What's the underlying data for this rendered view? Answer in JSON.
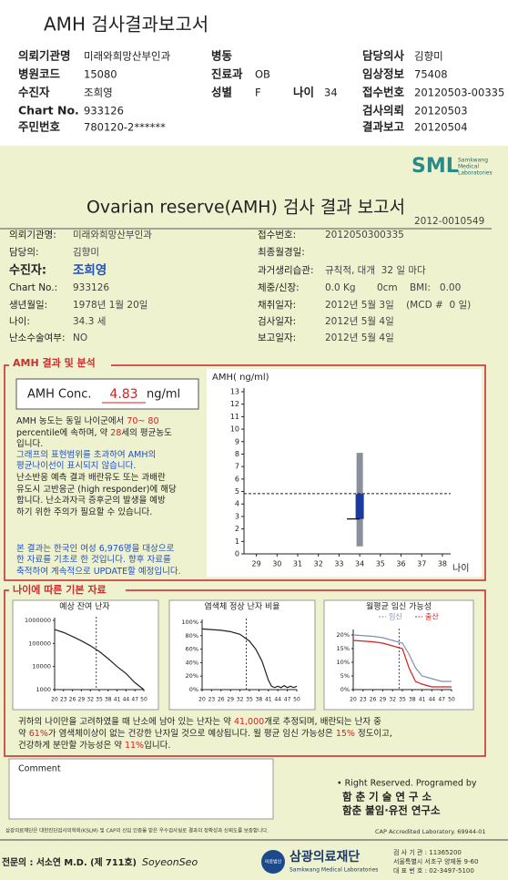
{
  "header": {
    "title": "AMH 검사결과보고서",
    "fields": [
      {
        "label": "의뢰기관명",
        "value": "미래와희망산부인과"
      },
      {
        "label": "병동"
      },
      {
        "label": "담당의사",
        "value": "김향미"
      },
      {
        "label": "병원코드",
        "value": "15080"
      },
      {
        "label": "진료과",
        "value": "OB"
      },
      {
        "label": "임상정보",
        "value": "75408"
      },
      {
        "label": "수진자",
        "value": "조희영"
      },
      {
        "label": "성별",
        "value": "F"
      },
      {
        "label": "나이",
        "value": "34"
      },
      {
        "label": "접수번호",
        "value": "20120503-00335"
      },
      {
        "label": "Chart No.",
        "value": "933126"
      },
      {
        "label": "검사의뢰",
        "value": "20120503"
      },
      {
        "label": "주민번호",
        "value": "780120-2******"
      },
      {
        "label": "결과보고",
        "value": "20120504"
      }
    ]
  },
  "report": {
    "logo": "SML",
    "logo_sub": [
      "Samkwang",
      "Medical",
      "Laboratories"
    ],
    "title": "Ovarian reserve(AMH) 검사 결과 보고서",
    "number": "2012-0010549",
    "left": [
      {
        "label": "의뢰기관명:",
        "value": "미래와희망산부인과"
      },
      {
        "label": "담당의:",
        "value": "김향미"
      },
      {
        "label": "수진자:",
        "value": "조희영"
      },
      {
        "label": "Chart No.:",
        "value": "933126"
      },
      {
        "label": "생년월일:",
        "value": "1978년 1월 20일"
      },
      {
        "label": "나이:",
        "value": "34.3 세"
      },
      {
        "label": "난소수술여부:",
        "value": "NO"
      }
    ],
    "right": [
      {
        "label": "접수번호:",
        "value": "2012050300335"
      },
      {
        "label": "최종월경일:"
      },
      {
        "label": "과거생리습관:",
        "value": "규칙적, 대개  32 일 마다"
      },
      {
        "label": "체중/신장:",
        "value": "0.0 Kg       0cm    BMI:   0.00"
      },
      {
        "label": "채취일자:",
        "value": "2012년 5월 3일    (MCD #  0 일)"
      },
      {
        "label": "검사일자:",
        "value": "2012년 5월 4일"
      },
      {
        "label": "보고일자:",
        "value": "2012년 5월 4일"
      }
    ]
  },
  "amh": {
    "title": "AMH 결과 및 분석",
    "conc_label": "AMH Conc.",
    "conc_value": 4.83,
    "conc_unit": "ng/ml",
    "highlight": "#d42020",
    "paragraphs": [
      {
        "color": "#222222",
        "lines": [
          [
            "AMH 농도는 동일 나이군에서 ",
            "70~ 80"
          ],
          [
            "percentile에 속하며, 약 ",
            "28",
            "세의 평균농도"
          ],
          [
            "입니다."
          ]
        ]
      },
      {
        "color": "#1f4fc0",
        "lines": [
          [
            "그래프의 표현범위를 초과하여 AMH의"
          ],
          [
            "평균나이선이 표시되지 않습니다."
          ]
        ]
      },
      {
        "color": "#222222",
        "lines": [
          [
            "난소반응 예측 결과 배란유도 또는 과배란"
          ],
          [
            "유도시 고반응군 (high responder)에 해당"
          ],
          [
            "합니다. 난소과자극 증후군의 발생을 예방"
          ],
          [
            "하기 위한 주의가 필요할 수 있습니다."
          ]
        ]
      },
      {
        "color": "#1f4fc0",
        "lines": [
          [
            "본 결과는 한국인 여성 6,976명을 대상으로"
          ],
          [
            "한 자료를 기초로 한 것입니다. 향후 자료를"
          ],
          [
            "축적하여 계속적으로 UPDATE할 예정입니다."
          ]
        ]
      }
    ],
    "chart": {
      "y_label": "AMH( ng/ml)",
      "x_label": "나이",
      "ylim": [
        0,
        13
      ],
      "yticks": [
        0,
        1,
        2,
        3,
        4,
        5,
        6,
        7,
        8,
        9,
        10,
        11,
        12,
        13
      ],
      "xlim": [
        28.4,
        38.4
      ],
      "xticks": [
        29,
        30,
        31,
        32,
        33,
        34,
        35,
        36,
        37,
        38
      ],
      "age": 34,
      "range": [
        0.6,
        8.1
      ],
      "box": [
        2.8,
        4.8
      ],
      "range_color": "#8a8f9c",
      "box_color": "#1a3aa0"
    }
  },
  "age": {
    "title": "나이에 따른 기본 자료",
    "marker_x": 34,
    "charts": [
      {
        "title": "예상 잔여 난자",
        "log": true,
        "xlim": [
          20,
          50
        ],
        "xticks": [
          20,
          23,
          26,
          29,
          32,
          35,
          38,
          41,
          44,
          47,
          50
        ],
        "ylim": [
          1000,
          1000000
        ],
        "yticks": [
          1000,
          10000,
          100000,
          1000000
        ],
        "series": [
          {
            "color": "#222222",
            "x": [
              20,
              23,
              26,
              29,
              32,
              35,
              38,
              41,
              44,
              47,
              50
            ],
            "values": [
              400000,
              300000,
              200000,
              130000,
              80000,
              45000,
              22000,
              10000,
              5000,
              2000,
              1000
            ]
          }
        ]
      },
      {
        "title": "염색체 정상 난자 비율",
        "log": false,
        "xlim": [
          20,
          50
        ],
        "xticks": [
          20,
          23,
          26,
          29,
          32,
          35,
          38,
          41,
          44,
          47,
          50
        ],
        "ylim": [
          0,
          100
        ],
        "yticks": [
          {
            "value": 0,
            "label": "0%"
          },
          {
            "value": 20,
            "label": "20%"
          },
          {
            "value": 40,
            "label": "40%"
          },
          {
            "value": 60,
            "label": "60%"
          },
          {
            "value": 80,
            "label": "80%"
          },
          {
            "value": 100,
            "label": "100%"
          }
        ],
        "series": [
          {
            "color": "#222222",
            "x": [
              20,
              23,
              26,
              29,
              32,
              35,
              37,
              39,
              40,
              41,
              42,
              43,
              44,
              45,
              46,
              47,
              48,
              49,
              50
            ],
            "values": [
              90,
              89,
              88,
              86,
              82,
              72,
              60,
              42,
              28,
              14,
              5,
              3,
              5,
              3,
              6,
              3,
              5,
              3,
              5
            ]
          }
        ]
      },
      {
        "title": "월평균 임신 가능성",
        "log": false,
        "xlim": [
          20,
          50
        ],
        "xticks": [
          20,
          23,
          26,
          29,
          32,
          35,
          38,
          41,
          44,
          47,
          50
        ],
        "ylim": [
          0,
          21
        ],
        "yticks": [
          {
            "value": 0,
            "label": "0%"
          },
          {
            "value": 5,
            "label": "5%"
          },
          {
            "value": 10,
            "label": "10%"
          },
          {
            "value": 15,
            "label": "15%"
          },
          {
            "value": 20,
            "label": "20%"
          }
        ],
        "series": [
          {
            "name": "임신",
            "color": "#8090b0",
            "x": [
              20,
              26,
              29,
              32,
              35,
              37,
              39,
              41,
              44,
              47,
              50
            ],
            "values": [
              20,
              19.5,
              19,
              18,
              17,
              13,
              8,
              5,
              4,
              3,
              3
            ]
          },
          {
            "name": "출산",
            "color": "#d42020",
            "x": [
              20,
              26,
              29,
              32,
              35,
              37,
              39,
              41,
              44,
              47,
              50
            ],
            "values": [
              18,
              17.5,
              17,
              16,
              15,
              8,
              3,
              2,
              1,
              1,
              1
            ]
          }
        ]
      }
    ],
    "conclusion": [
      [
        "귀하의 나이만을 고려하였을 때 난소에 남아 있는 난자는 약 ",
        "41,000",
        "개로 추정되며, 배란되는 난자 중"
      ],
      [
        "약 ",
        "61%",
        "가 염색체이상이 없는 건강한 난자일 것으로 예상됩니다. 월 평균 임신 가능성은 ",
        "15%",
        " 정도이고,"
      ],
      [
        "건강하게 분만할 가능성은 약 ",
        "11%",
        "입니다."
      ]
    ]
  },
  "comment": {
    "label": "Comment"
  },
  "credits": [
    "• Right Reserved. Programed by",
    "함 춘 기 술 연 구 소",
    "함춘 불임·유전 연구소"
  ],
  "footer": {
    "note": "삼광의료재단은 대한진단검사의학회(KSLM) 및 CAP의 신임 인증을 받은 우수검사실로 결과의 정확성과 신뢰도를 보증합니다.",
    "cap": "CAP Accredited Laboratory. 69944-01",
    "doctor": "전문의 : 서소연 M.D. (제 711호)",
    "signature": "SoyeonSeo",
    "corp": "의료법인",
    "name": "삼광의료재단",
    "name_en": "Samkwang Medical Laboratories",
    "contact": [
      "검 사 기 관 : 11365200",
      "서울특별시 서초구 양재동 9-60",
      "대 표 번 호 : 02-3497-5100"
    ]
  }
}
